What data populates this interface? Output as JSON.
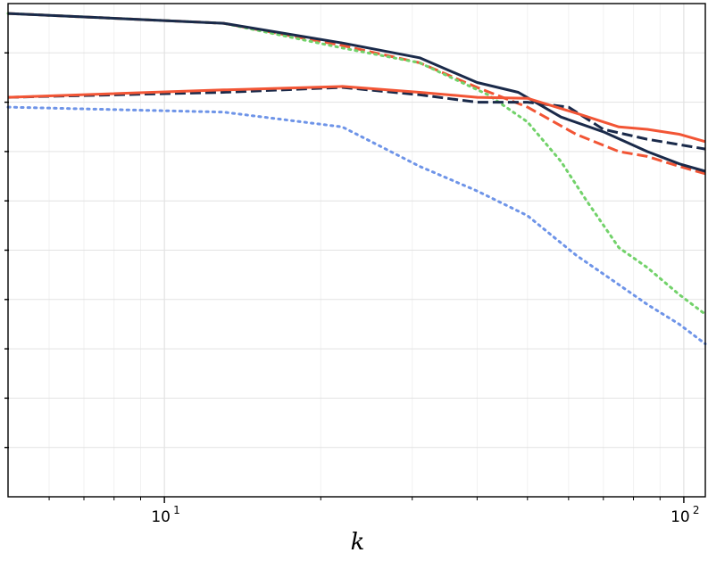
{
  "chart_data": {
    "type": "line",
    "title": "",
    "xlabel": "k",
    "ylabel": "",
    "xscale": "log",
    "xlim": [
      5,
      110
    ],
    "ylim": [
      0,
      1
    ],
    "grid": true,
    "legend": "none",
    "x_ticks": [
      {
        "value": 10,
        "base": "10",
        "exp": "1"
      },
      {
        "value": 100,
        "base": "10",
        "exp": "2"
      }
    ],
    "y_tick_values": [
      0.1,
      0.2,
      0.3,
      0.4,
      0.5,
      0.6,
      0.7,
      0.8,
      0.9
    ],
    "series": [
      {
        "color": "#c7c7c7",
        "style": "dashed",
        "width": 3,
        "points": [
          [
            5,
            0.98
          ],
          [
            13,
            0.96
          ]
        ]
      },
      {
        "color": "#f25535",
        "style": "dashed",
        "width": 3,
        "points": [
          [
            5,
            0.98
          ],
          [
            13,
            0.96
          ],
          [
            22,
            0.915
          ],
          [
            31,
            0.88
          ],
          [
            40,
            0.83
          ],
          [
            50,
            0.79
          ],
          [
            62,
            0.735
          ],
          [
            75,
            0.7
          ],
          [
            85,
            0.69
          ],
          [
            98,
            0.67
          ],
          [
            110,
            0.655
          ]
        ]
      },
      {
        "color": "#72d26a",
        "style": "dotted",
        "width": 3,
        "points": [
          [
            5,
            0.98
          ],
          [
            13,
            0.96
          ],
          [
            22,
            0.91
          ],
          [
            31,
            0.88
          ],
          [
            42,
            0.815
          ],
          [
            50,
            0.76
          ],
          [
            58,
            0.68
          ],
          [
            65,
            0.6
          ],
          [
            75,
            0.505
          ],
          [
            85,
            0.465
          ],
          [
            98,
            0.41
          ],
          [
            110,
            0.37
          ]
        ]
      },
      {
        "color": "#1a2a4a",
        "style": "solid",
        "width": 3,
        "points": [
          [
            5,
            0.98
          ],
          [
            13,
            0.96
          ],
          [
            22,
            0.92
          ],
          [
            31,
            0.89
          ],
          [
            40,
            0.84
          ],
          [
            48,
            0.82
          ],
          [
            58,
            0.77
          ],
          [
            70,
            0.74
          ],
          [
            85,
            0.7
          ],
          [
            98,
            0.675
          ],
          [
            110,
            0.66
          ]
        ]
      },
      {
        "color": "#1a2a4a",
        "style": "dashed",
        "width": 3,
        "points": [
          [
            5,
            0.81
          ],
          [
            13,
            0.82
          ],
          [
            22,
            0.83
          ],
          [
            31,
            0.815
          ],
          [
            40,
            0.8
          ],
          [
            50,
            0.8
          ],
          [
            60,
            0.79
          ],
          [
            70,
            0.745
          ],
          [
            85,
            0.725
          ],
          [
            110,
            0.705
          ]
        ]
      },
      {
        "color": "#f25535",
        "style": "solid",
        "width": 3,
        "points": [
          [
            5,
            0.81
          ],
          [
            13,
            0.825
          ],
          [
            22,
            0.832
          ],
          [
            31,
            0.82
          ],
          [
            40,
            0.81
          ],
          [
            50,
            0.808
          ],
          [
            62,
            0.778
          ],
          [
            75,
            0.75
          ],
          [
            85,
            0.745
          ],
          [
            98,
            0.735
          ],
          [
            110,
            0.72
          ]
        ]
      },
      {
        "color": "#6e94e8",
        "style": "dotted",
        "width": 3,
        "points": [
          [
            5,
            0.79
          ],
          [
            13,
            0.78
          ],
          [
            22,
            0.75
          ],
          [
            31,
            0.67
          ],
          [
            40,
            0.62
          ],
          [
            50,
            0.57
          ],
          [
            62,
            0.49
          ],
          [
            75,
            0.43
          ],
          [
            85,
            0.39
          ],
          [
            98,
            0.35
          ],
          [
            110,
            0.31
          ]
        ]
      }
    ]
  }
}
